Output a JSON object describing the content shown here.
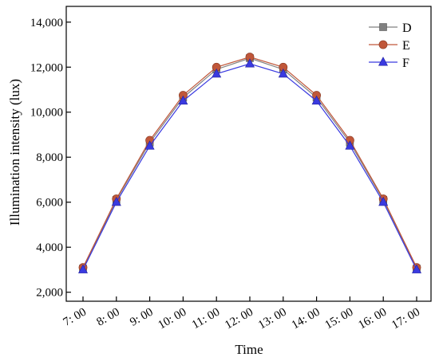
{
  "chart_data": {
    "type": "line",
    "xlabel": "Time",
    "ylabel": "Illumination intensity (lux)",
    "categories": [
      "7:  00",
      "8:  00",
      "9:  00",
      "10:  00",
      "11:  00",
      "12:  00",
      "13:  00",
      "14:  00",
      "15:  00",
      "16:  00",
      "17:  00"
    ],
    "yticks": [
      2000,
      4000,
      6000,
      8000,
      10000,
      12000,
      14000
    ],
    "ytick_labels": [
      "2,000",
      "4,000",
      "6,000",
      "8,000",
      "10,000",
      "12,000",
      "14,000"
    ],
    "ylim": [
      1600,
      14700
    ],
    "grid": false,
    "legend_position": "top-right",
    "series": [
      {
        "name": "D",
        "marker": "square",
        "color": "#808080",
        "values": [
          3050,
          6100,
          8650,
          10650,
          11900,
          12400,
          11900,
          10650,
          8650,
          6100,
          3050
        ]
      },
      {
        "name": "E",
        "marker": "circle",
        "color": "#c0573a",
        "values": [
          3100,
          6150,
          8750,
          10750,
          12000,
          12450,
          12000,
          10750,
          8750,
          6150,
          3100
        ]
      },
      {
        "name": "F",
        "marker": "triangle",
        "color": "#3a3ae0",
        "values": [
          3000,
          6000,
          8500,
          10500,
          11700,
          12150,
          11700,
          10500,
          8500,
          6000,
          3000
        ]
      }
    ]
  }
}
